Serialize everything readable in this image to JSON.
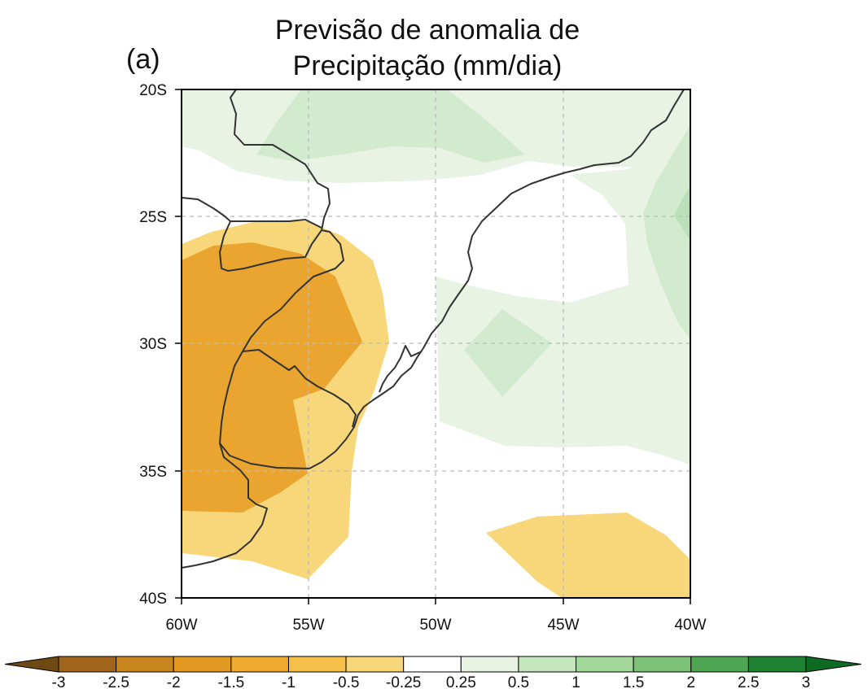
{
  "title_lines": [
    "Previsão de anomalia de",
    "Precipitação (mm/dia)"
  ],
  "panel_label": "(a)",
  "map": {
    "lat_range": [
      -40,
      -20
    ],
    "lon_range": [
      -60,
      -40
    ],
    "lat_ticks": [
      "20S",
      "25S",
      "30S",
      "35S",
      "40S"
    ],
    "lon_ticks": [
      "60W",
      "55W",
      "50W",
      "45W",
      "40W"
    ],
    "grid": "dashed",
    "colors": {
      "dry_strong": "#e9a530",
      "dry_weak": "#f8d77a",
      "wet_weak": "#e8f3e4",
      "wet_medium": "#d2ebcf",
      "wet_strong": "#b9e0b6",
      "coast": "#333333",
      "grid": "#bbbbbb"
    }
  },
  "colorbar": {
    "labels": [
      "-3",
      "-2.5",
      "-2",
      "-1.5",
      "-1",
      "-0.5",
      "-0.25",
      "0.25",
      "0.5",
      "1",
      "1.5",
      "2",
      "2.5",
      "3"
    ],
    "colors": [
      "#6e4a12",
      "#a0651a",
      "#c9861f",
      "#e29a23",
      "#efab30",
      "#f4c049",
      "#f8d77a",
      "#ffffff",
      "#e8f3e4",
      "#c5e6bd",
      "#a3d79c",
      "#7cc277",
      "#4ea653",
      "#1e8232",
      "#0d6b23"
    ]
  }
}
